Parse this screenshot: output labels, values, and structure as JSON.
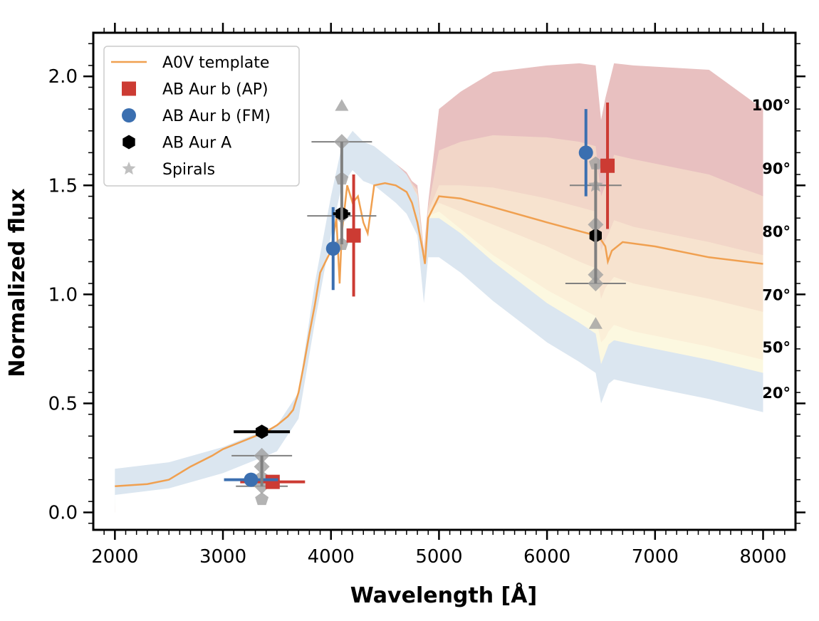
{
  "chart_data": {
    "type": "line",
    "xlabel": "Wavelength [Å]",
    "ylabel": "Normalized flux",
    "xlim": [
      1800,
      8300
    ],
    "ylim": [
      -0.08,
      2.2
    ],
    "x_ticks": [
      2000,
      3000,
      4000,
      5000,
      6000,
      7000,
      8000
    ],
    "x_tick_labels": [
      "2000",
      "3000",
      "4000",
      "5000",
      "6000",
      "7000",
      "8000"
    ],
    "y_ticks": [
      0.0,
      0.5,
      1.0,
      1.5,
      2.0
    ],
    "y_tick_labels": [
      "0.0",
      "0.5",
      "1.0",
      "1.5",
      "2.0"
    ],
    "grid": false,
    "legend_position": "top-left",
    "legend": [
      {
        "label": "A0V template",
        "marker": "line",
        "color": "#f0a050"
      },
      {
        "label": "AB Aur b (AP)",
        "marker": "square",
        "color": "#cc3b33"
      },
      {
        "label": "AB Aur b (FM)",
        "marker": "circle",
        "color": "#3b6fb0"
      },
      {
        "label": "AB Aur A",
        "marker": "hexagon",
        "color": "#000000"
      },
      {
        "label": "Spirals",
        "marker": "star",
        "color": "#b0b0b0"
      }
    ],
    "angle_labels": [
      {
        "text": "100°",
        "y": 1.87
      },
      {
        "text": "90°",
        "y": 1.58
      },
      {
        "text": "80°",
        "y": 1.29
      },
      {
        "text": "70°",
        "y": 1.0
      },
      {
        "text": "50°",
        "y": 0.76
      },
      {
        "text": "20°",
        "y": 0.55
      }
    ],
    "bands": [
      {
        "name": "100°",
        "color": "#e8c0c0",
        "x": [
          2000,
          2500,
          3000,
          3500,
          3700,
          3850,
          4000,
          4100,
          4200,
          4300,
          4400,
          4500,
          4600,
          4700,
          4750,
          4800,
          4860,
          4900,
          5000,
          5200,
          5500,
          6000,
          6300,
          6450,
          6500,
          6540,
          6570,
          6620,
          6800,
          7500,
          8000
        ],
        "y": [
          0.03,
          0.04,
          0.06,
          0.1,
          0.2,
          0.48,
          0.98,
          1.22,
          1.3,
          1.35,
          1.5,
          1.58,
          1.6,
          1.56,
          1.52,
          1.5,
          1.2,
          1.42,
          1.85,
          1.93,
          2.02,
          2.05,
          2.06,
          2.05,
          1.8,
          1.9,
          1.96,
          2.06,
          2.05,
          2.03,
          1.85
        ]
      },
      {
        "name": "90°",
        "color": "#f2d6c8",
        "x": [
          2000,
          2500,
          3000,
          3500,
          3700,
          3850,
          4000,
          4100,
          4200,
          4300,
          4400,
          4500,
          4600,
          4700,
          4750,
          4800,
          4860,
          4900,
          5000,
          5200,
          5500,
          6000,
          6300,
          6450,
          6500,
          6540,
          6570,
          6620,
          6800,
          7500,
          8000
        ],
        "y": [
          0.03,
          0.045,
          0.07,
          0.13,
          0.25,
          0.6,
          1.05,
          1.25,
          1.32,
          1.36,
          1.48,
          1.56,
          1.58,
          1.55,
          1.51,
          1.48,
          1.18,
          1.4,
          1.66,
          1.7,
          1.73,
          1.72,
          1.7,
          1.68,
          1.45,
          1.5,
          1.55,
          1.64,
          1.62,
          1.55,
          1.45
        ]
      },
      {
        "name": "80°",
        "color": "#f7e3cf",
        "x": [
          2000,
          2500,
          3000,
          3500,
          3700,
          3850,
          4000,
          4100,
          4200,
          4300,
          4400,
          4500,
          4600,
          4700,
          4750,
          4800,
          4860,
          4900,
          5000,
          5200,
          5500,
          6000,
          6300,
          6450,
          6500,
          6540,
          6570,
          6620,
          6800,
          7500,
          8000
        ],
        "y": [
          0.03,
          0.05,
          0.09,
          0.18,
          0.35,
          0.75,
          1.12,
          1.3,
          1.36,
          1.38,
          1.46,
          1.52,
          1.53,
          1.52,
          1.49,
          1.46,
          1.16,
          1.38,
          1.5,
          1.5,
          1.49,
          1.44,
          1.4,
          1.38,
          1.2,
          1.25,
          1.28,
          1.34,
          1.31,
          1.24,
          1.18
        ]
      },
      {
        "name": "70°",
        "color": "#fbefd8",
        "x": [
          2000,
          2500,
          3000,
          3500,
          3700,
          3850,
          4000,
          4100,
          4200,
          4300,
          4400,
          4500,
          4600,
          4700,
          4750,
          4800,
          4860,
          4900,
          5000,
          5200,
          5500,
          6000,
          6300,
          6450,
          6500,
          6540,
          6570,
          6620,
          6800,
          7500,
          8000
        ],
        "y": [
          0.04,
          0.07,
          0.13,
          0.25,
          0.45,
          0.9,
          1.25,
          1.42,
          1.45,
          1.44,
          1.48,
          1.5,
          1.5,
          1.49,
          1.47,
          1.45,
          1.15,
          1.37,
          1.42,
          1.38,
          1.32,
          1.22,
          1.15,
          1.12,
          0.98,
          1.03,
          1.05,
          1.08,
          1.05,
          0.98,
          0.92
        ]
      },
      {
        "name": "50°",
        "color": "#fcf8e0",
        "x": [
          2000,
          2500,
          3000,
          3500,
          3700,
          3850,
          4000,
          4100,
          4200,
          4300,
          4400,
          4500,
          4600,
          4700,
          4750,
          4800,
          4860,
          4900,
          5000,
          5200,
          5500,
          6000,
          6300,
          6450,
          6500,
          6540,
          6570,
          6620,
          6800,
          7500,
          8000
        ],
        "y": [
          0.06,
          0.1,
          0.18,
          0.32,
          0.52,
          1.0,
          1.38,
          1.58,
          1.62,
          1.58,
          1.6,
          1.58,
          1.56,
          1.52,
          1.49,
          1.45,
          1.15,
          1.36,
          1.38,
          1.3,
          1.18,
          1.02,
          0.94,
          0.9,
          0.78,
          0.8,
          0.83,
          0.86,
          0.83,
          0.76,
          0.7
        ]
      },
      {
        "name": "20°",
        "color": "#dbe6f0",
        "x": [
          2000,
          2500,
          3000,
          3500,
          3700,
          3850,
          4000,
          4100,
          4200,
          4300,
          4400,
          4500,
          4600,
          4700,
          4750,
          4800,
          4860,
          4900,
          5000,
          5200,
          5500,
          6000,
          6300,
          6450,
          6500,
          6540,
          6570,
          6620,
          6800,
          7500,
          8000
        ],
        "y": [
          0.2,
          0.23,
          0.3,
          0.4,
          0.55,
          1.05,
          1.45,
          1.68,
          1.75,
          1.7,
          1.68,
          1.64,
          1.6,
          1.55,
          1.5,
          1.45,
          1.14,
          1.35,
          1.35,
          1.28,
          1.15,
          0.96,
          0.87,
          0.82,
          0.68,
          0.73,
          0.77,
          0.79,
          0.77,
          0.7,
          0.64
        ]
      }
    ],
    "series": [
      {
        "name": "A0V template",
        "color": "#f0a050",
        "x": [
          2000,
          2300,
          2500,
          2700,
          2900,
          3000,
          3200,
          3400,
          3500,
          3600,
          3650,
          3700,
          3750,
          3800,
          3850,
          3900,
          3950,
          4000,
          4050,
          4080,
          4100,
          4150,
          4200,
          4250,
          4300,
          4340,
          4400,
          4500,
          4600,
          4700,
          4750,
          4800,
          4850,
          4870,
          4900,
          4950,
          5000,
          5200,
          5500,
          6000,
          6300,
          6450,
          6500,
          6540,
          6563,
          6600,
          6700,
          7000,
          7500,
          8000
        ],
        "y": [
          0.12,
          0.13,
          0.15,
          0.21,
          0.26,
          0.29,
          0.33,
          0.37,
          0.4,
          0.44,
          0.47,
          0.55,
          0.68,
          0.82,
          0.95,
          1.1,
          1.15,
          1.2,
          1.35,
          1.05,
          1.28,
          1.5,
          1.42,
          1.45,
          1.33,
          1.28,
          1.5,
          1.51,
          1.5,
          1.47,
          1.42,
          1.33,
          1.2,
          1.14,
          1.35,
          1.4,
          1.45,
          1.44,
          1.4,
          1.33,
          1.29,
          1.27,
          1.25,
          1.22,
          1.15,
          1.2,
          1.24,
          1.22,
          1.17,
          1.14
        ]
      },
      {
        "name": "AB Aur b (AP)",
        "marker": "square",
        "color": "#cc3b33",
        "points": [
          {
            "x": 3460,
            "y": 0.14,
            "xerr": 300,
            "yerr": 0.0
          },
          {
            "x": 4210,
            "y": 1.27,
            "xerr": 0,
            "yerr": 0.28
          },
          {
            "x": 6560,
            "y": 1.59,
            "xerr": 0,
            "yerr": 0.29
          }
        ]
      },
      {
        "name": "AB Aur b (FM)",
        "marker": "circle",
        "color": "#3b6fb0",
        "points": [
          {
            "x": 3260,
            "y": 0.15,
            "xerr": 250,
            "yerr": 0.0
          },
          {
            "x": 4020,
            "y": 1.21,
            "xerr": 0,
            "yerr": 0.19
          },
          {
            "x": 6360,
            "y": 1.65,
            "xerr": 0,
            "yerr": 0.2
          }
        ]
      },
      {
        "name": "AB Aur A",
        "marker": "hexagon",
        "color": "#000000",
        "points": [
          {
            "x": 3360,
            "y": 0.37,
            "xerr": 260,
            "yerr": 0.0
          },
          {
            "x": 4100,
            "y": 1.37,
            "xerr": 80,
            "yerr": 0.0
          },
          {
            "x": 6450,
            "y": 1.27,
            "xerr": 0,
            "yerr": 0.0
          }
        ]
      },
      {
        "name": "Spirals",
        "marker": "mixed",
        "color": "#a0a0a0",
        "points": [
          {
            "x": 3360,
            "y": 0.26,
            "xerr": 280,
            "yerr": 0.0,
            "shape": "diamond"
          },
          {
            "x": 3360,
            "y": 0.12,
            "xerr": 240,
            "yerr": 0.0,
            "shape": "diamond"
          },
          {
            "x": 3360,
            "y": 0.21,
            "xerr": 0,
            "yerr": 0.0,
            "shape": "diamond"
          },
          {
            "x": 3360,
            "y": 0.06,
            "xerr": 0,
            "yerr": 0.0,
            "shape": "pentagon"
          },
          {
            "x": 3360,
            "y": 0.16,
            "xerr": 0,
            "yerr": 0.0,
            "shape": "pentagon"
          },
          {
            "x": 4100,
            "y": 1.7,
            "xerr": 280,
            "yerr": 0.0,
            "shape": "diamond"
          },
          {
            "x": 4100,
            "y": 1.36,
            "xerr": 320,
            "yerr": 0.0,
            "shape": "diamond"
          },
          {
            "x": 4100,
            "y": 1.53,
            "xerr": 0,
            "yerr": 0.0,
            "shape": "pentagon"
          },
          {
            "x": 4100,
            "y": 1.23,
            "xerr": 0,
            "yerr": 0.0,
            "shape": "pentagon"
          },
          {
            "x": 4100,
            "y": 1.86,
            "xerr": 0,
            "yerr": 0.0,
            "shape": "triangle"
          },
          {
            "x": 6450,
            "y": 1.5,
            "xerr": 240,
            "yerr": 0.0,
            "shape": "star"
          },
          {
            "x": 6450,
            "y": 1.05,
            "xerr": 280,
            "yerr": 0.0,
            "shape": "diamond"
          },
          {
            "x": 6450,
            "y": 1.32,
            "xerr": 0,
            "yerr": 0.0,
            "shape": "diamond"
          },
          {
            "x": 6450,
            "y": 1.6,
            "xerr": 0,
            "yerr": 0.0,
            "shape": "pentagon"
          },
          {
            "x": 6450,
            "y": 1.09,
            "xerr": 0,
            "yerr": 0.0,
            "shape": "diamond"
          },
          {
            "x": 6450,
            "y": 0.86,
            "xerr": 0,
            "yerr": 0.0,
            "shape": "triangle"
          }
        ]
      }
    ]
  }
}
